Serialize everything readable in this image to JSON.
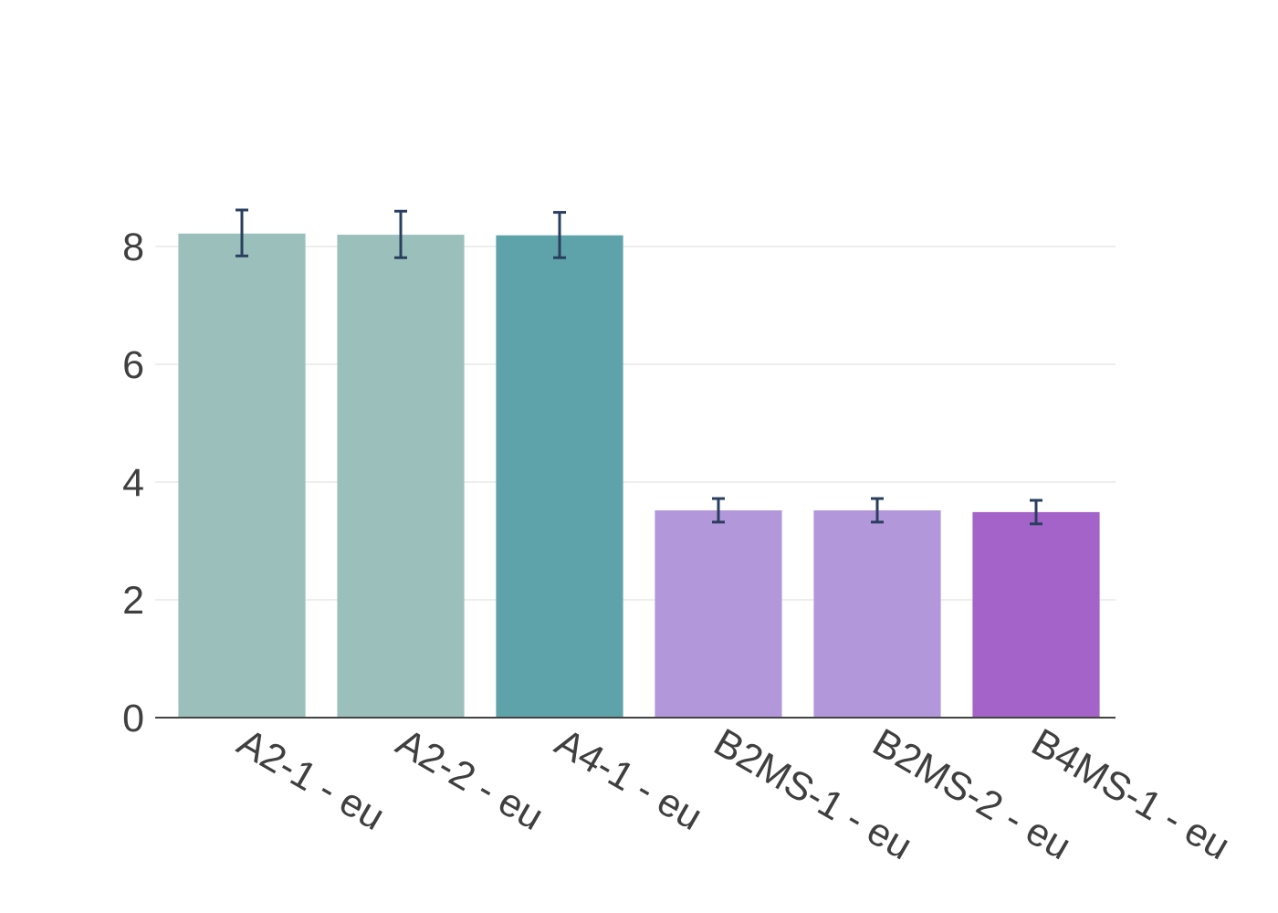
{
  "chart_data": {
    "type": "bar",
    "title": "",
    "xlabel": "",
    "ylabel": "",
    "ylim": [
      0,
      9
    ],
    "yticks": [
      0,
      2,
      4,
      6,
      8
    ],
    "grid": true,
    "categories": [
      "A2-1 - eu",
      "A2-2 - eu",
      "A4-1 - eu",
      "B2MS-1 - eu",
      "B2MS-2 - eu",
      "B4MS-1 - eu"
    ],
    "values": [
      8.22,
      8.2,
      8.19,
      3.52,
      3.52,
      3.49
    ],
    "error_low": [
      7.84,
      7.81,
      7.81,
      3.32,
      3.32,
      3.29
    ],
    "error_high": [
      8.62,
      8.6,
      8.58,
      3.72,
      3.72,
      3.69
    ],
    "colors": [
      "#9bc0bc",
      "#9bc0bc",
      "#5ea3aa",
      "#b298db",
      "#b298db",
      "#a463c9"
    ],
    "error_color": "#2a3f5f"
  }
}
